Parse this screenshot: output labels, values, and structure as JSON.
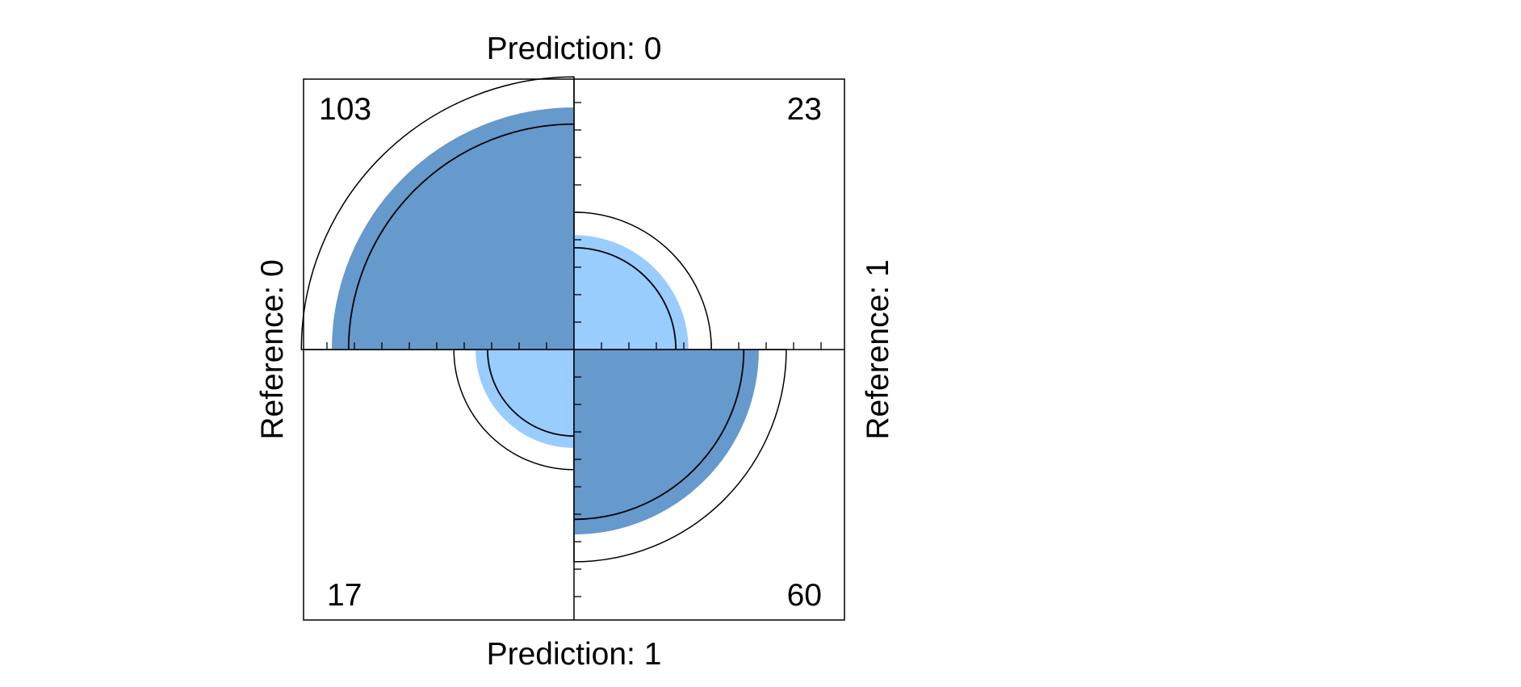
{
  "chart_data": {
    "type": "fourfold",
    "labels": {
      "top": "Prediction: 0",
      "bottom": "Prediction: 1",
      "left": "Reference: 0",
      "right": "Reference: 1"
    },
    "cells": [
      {
        "quadrant": "top-left",
        "count": "103",
        "value": 103,
        "fill": "#6699cc"
      },
      {
        "quadrant": "top-right",
        "count": "23",
        "value": 23,
        "fill": "#99ccff"
      },
      {
        "quadrant": "bottom-left",
        "count": "17",
        "value": 17,
        "fill": "#99ccff"
      },
      {
        "quadrant": "bottom-right",
        "count": "60",
        "value": 60,
        "fill": "#6699cc"
      }
    ],
    "confidence_rings": true,
    "axis_ticks": true
  }
}
